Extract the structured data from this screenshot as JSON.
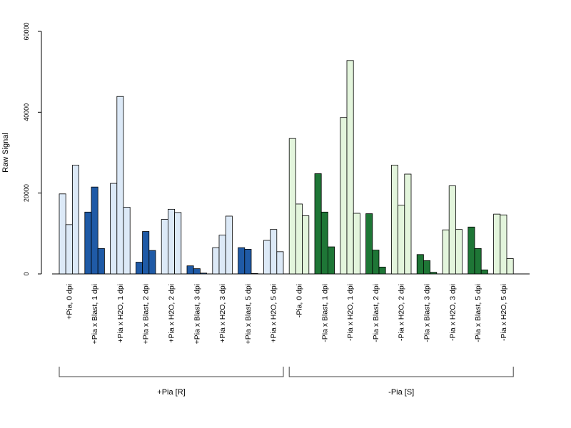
{
  "chart_data": {
    "type": "bar",
    "ylabel": "Raw Signal",
    "ylim": [
      0,
      60000
    ],
    "yticks": [
      0,
      20000,
      40000,
      60000
    ],
    "grid": false,
    "categories": [
      "+Pia, 0 dpi",
      "+Pia x Blast, 1 dpi",
      "+Pia x H2O, 1 dpi",
      "+Pia x Blast, 2 dpi",
      "+Pia x H2O, 2 dpi",
      "+Pia x Blast, 3 dpi",
      "+Pia x H2O, 3 dpi",
      "+Pia x Blast, 5 dpi",
      "+Pia x H2O, 5 dpi",
      "-Pia, 0 dpi",
      "-Pia x Blast, 1 dpi",
      "-Pia x H2O, 1 dpi",
      "-Pia x Blast, 2 dpi",
      "-Pia x H2O, 2 dpi",
      "-Pia x Blast, 3 dpi",
      "-Pia x H2O, 3 dpi",
      "-Pia x Blast, 5 dpi",
      "-Pia x H2O, 5 dpi"
    ],
    "values": [
      [
        19800,
        12200,
        26900
      ],
      [
        15300,
        21500,
        6300
      ],
      [
        22400,
        43900,
        16500
      ],
      [
        2900,
        10500,
        5800
      ],
      [
        13500,
        16000,
        15200
      ],
      [
        2000,
        1300,
        200
      ],
      [
        6500,
        9600,
        14300
      ],
      [
        6500,
        6100,
        100
      ],
      [
        8300,
        11000,
        5500
      ],
      [
        33500,
        17300,
        14400
      ],
      [
        24800,
        15300,
        6700
      ],
      [
        38700,
        52800,
        15000
      ],
      [
        14900,
        5900,
        1700
      ],
      [
        26900,
        17000,
        24700
      ],
      [
        4800,
        3300,
        400
      ],
      [
        10900,
        21800,
        11000
      ],
      [
        11600,
        6300,
        1000
      ],
      [
        14800,
        14600,
        3800
      ]
    ],
    "bar_colors": [
      "#dce9f7",
      "#1f5aa6",
      "#dce9f7",
      "#1f5aa6",
      "#dce9f7",
      "#1f5aa6",
      "#dce9f7",
      "#1f5aa6",
      "#dce9f7",
      "#e3f5dc",
      "#1e7636",
      "#e3f5dc",
      "#1e7636",
      "#e3f5dc",
      "#1e7636",
      "#e3f5dc",
      "#1e7636",
      "#e3f5dc"
    ],
    "groups": [
      {
        "label": "+Pia [R]",
        "from": 0,
        "to": 8
      },
      {
        "label": "-Pia [S]",
        "from": 9,
        "to": 17
      }
    ]
  }
}
